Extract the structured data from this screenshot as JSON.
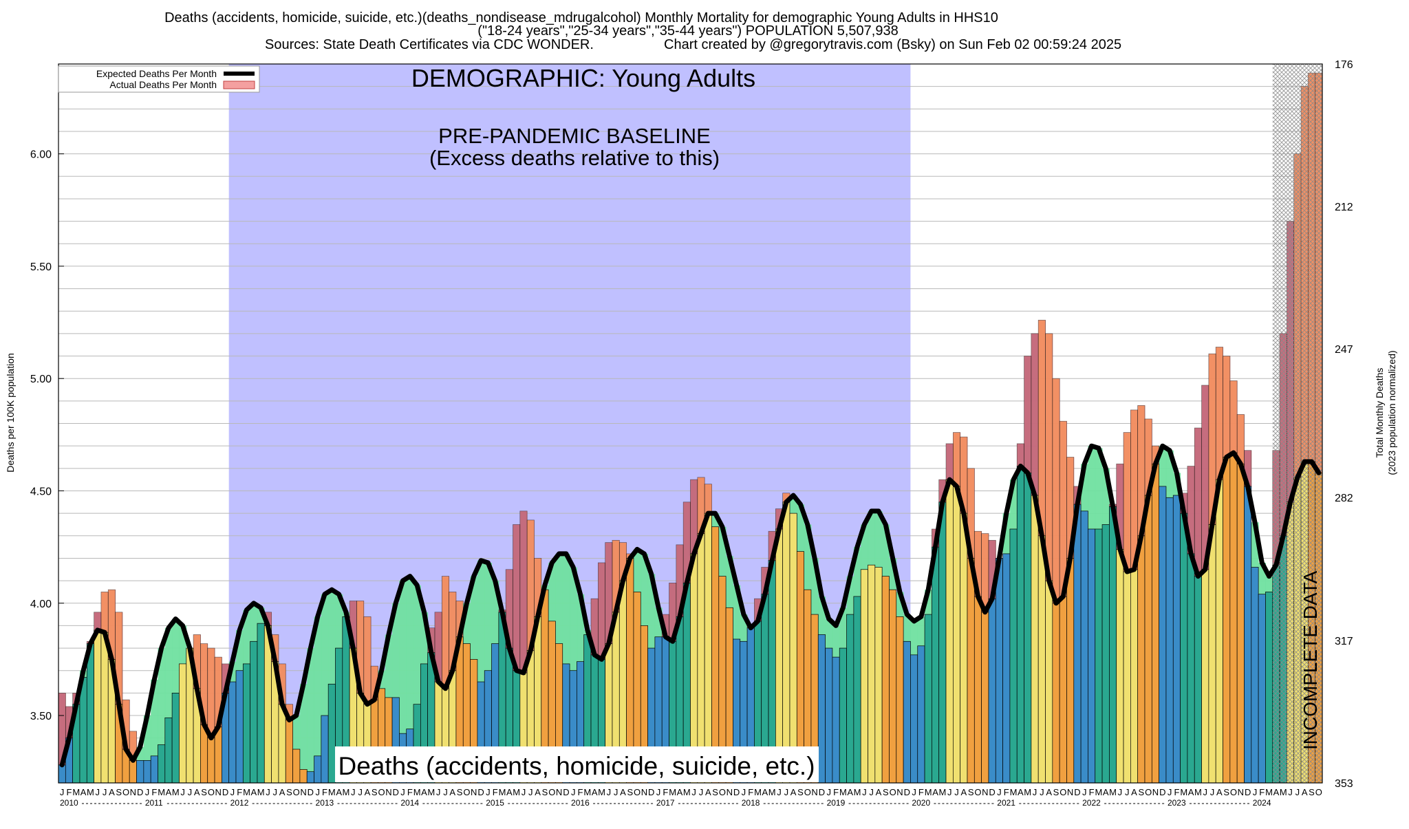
{
  "header": {
    "line1": "Deaths (accidents, homicide, suicide, etc.)(deaths_nondisease_mdrugalcohol) Monthly Mortality for demographic Young Adults in HHS10",
    "line2": "(\"18-24 years\",\"25-34 years\",\"35-44 years\") POPULATION 5,507,938",
    "line3_left": "Sources: State Death Certificates via CDC WONDER.",
    "line3_right": "Chart created by @gregorytravis.com (Bsky) on Sun Feb 02 00:59:24 2025"
  },
  "legend": {
    "expected": "Expected Deaths Per Month",
    "actual": "Actual Deaths Per Month"
  },
  "annotations": {
    "demographic": "DEMOGRAPHIC: Young Adults",
    "baseline_line1": "PRE-PANDEMIC BASELINE",
    "baseline_line2": "(Excess deaths relative to this)",
    "incomplete": "INCOMPLETE DATA",
    "category": "Deaths (accidents, homicide, suicide, etc.)"
  },
  "colors": {
    "baseline_band": "#c0c0ff",
    "expected_line": "#000000",
    "excess_fill": "#f4a0a0",
    "deficit_fill": "#70e0a0",
    "bar_winter": "#3a8cc8",
    "bar_spring": "#2aa890",
    "bar_summer": "#f0e070",
    "bar_fall": "#f0a040"
  },
  "chart_data": {
    "type": "bar",
    "ylabel_left": "Deaths per 100K population",
    "ylabel_right_line1": "Total Monthly Deaths",
    "ylabel_right_line2": "(2023 population normalized)",
    "ylim": [
      3.2,
      6.4
    ],
    "yticks_left": [
      "3.50",
      "4.00",
      "4.50",
      "5.00",
      "5.50",
      "6.00"
    ],
    "yticks_right": [
      "176",
      "212",
      "247",
      "282",
      "317",
      "353"
    ],
    "month_letters": [
      "J",
      "F",
      "M",
      "A",
      "M",
      "J",
      "J",
      "A",
      "S",
      "O",
      "N",
      "D"
    ],
    "years": [
      "2010",
      "2011",
      "2012",
      "2013",
      "2014",
      "2015",
      "2016",
      "2017",
      "2018",
      "2019",
      "2020",
      "2021",
      "2022",
      "2023",
      "2024"
    ],
    "baseline_period": [
      "2012-01",
      "2019-12"
    ],
    "incomplete_period": [
      "2024-04",
      "2024-10"
    ],
    "series": [
      {
        "name": "Actual Deaths Per Month",
        "values": [
          3.6,
          3.54,
          3.6,
          3.67,
          3.83,
          3.96,
          4.05,
          4.06,
          3.96,
          3.57,
          3.43,
          3.3,
          3.3,
          3.32,
          3.37,
          3.49,
          3.6,
          3.73,
          3.8,
          3.86,
          3.82,
          3.8,
          3.76,
          3.73,
          3.65,
          3.7,
          3.73,
          3.83,
          3.91,
          3.96,
          3.86,
          3.73,
          3.55,
          3.35,
          3.26,
          3.25,
          3.32,
          3.5,
          3.64,
          3.8,
          3.94,
          4.01,
          4.01,
          3.94,
          3.72,
          3.62,
          3.58,
          3.58,
          3.42,
          3.44,
          3.55,
          3.73,
          3.89,
          3.96,
          4.12,
          4.05,
          4.01,
          3.82,
          3.75,
          3.65,
          3.7,
          3.82,
          3.97,
          4.15,
          4.35,
          4.41,
          4.37,
          4.2,
          4.06,
          3.92,
          3.82,
          3.73,
          3.7,
          3.74,
          3.86,
          4.02,
          4.18,
          4.27,
          4.28,
          4.27,
          4.22,
          4.05,
          3.9,
          3.8,
          3.85,
          3.95,
          4.09,
          4.26,
          4.45,
          4.55,
          4.56,
          4.53,
          4.34,
          4.12,
          3.98,
          3.84,
          3.83,
          3.9,
          4.02,
          4.16,
          4.32,
          4.42,
          4.49,
          4.4,
          4.23,
          4.06,
          3.95,
          3.86,
          3.8,
          3.76,
          3.8,
          3.95,
          4.03,
          4.15,
          4.17,
          4.16,
          4.12,
          4.06,
          3.94,
          3.83,
          3.77,
          3.81,
          3.95,
          4.33,
          4.55,
          4.71,
          4.76,
          4.74,
          4.6,
          4.32,
          4.31,
          4.28,
          4.2,
          4.22,
          4.33,
          4.71,
          5.1,
          5.2,
          5.26,
          5.2,
          5.0,
          4.81,
          4.65,
          4.52,
          4.41,
          4.33,
          4.33,
          4.35,
          4.44,
          4.62,
          4.76,
          4.86,
          4.88,
          4.82,
          4.7,
          4.52,
          4.47,
          4.48,
          4.49,
          4.61,
          4.78,
          4.97,
          5.11,
          5.14,
          5.1,
          4.99,
          4.84,
          4.68,
          4.16,
          4.04,
          4.05,
          4.68,
          5.2,
          5.7,
          6.0,
          6.3,
          6.36,
          6.36
        ]
      },
      {
        "name": "Expected Deaths Per Month",
        "values": [
          3.28,
          3.4,
          3.55,
          3.7,
          3.82,
          3.88,
          3.87,
          3.75,
          3.55,
          3.35,
          3.3,
          3.36,
          3.5,
          3.66,
          3.8,
          3.89,
          3.93,
          3.9,
          3.8,
          3.62,
          3.46,
          3.4,
          3.45,
          3.6,
          3.74,
          3.88,
          3.97,
          4.0,
          3.98,
          3.9,
          3.74,
          3.55,
          3.48,
          3.5,
          3.64,
          3.8,
          3.94,
          4.04,
          4.06,
          4.04,
          3.96,
          3.8,
          3.6,
          3.55,
          3.57,
          3.7,
          3.86,
          4.0,
          4.1,
          4.12,
          4.08,
          3.96,
          3.78,
          3.65,
          3.62,
          3.7,
          3.85,
          4.0,
          4.12,
          4.19,
          4.18,
          4.1,
          3.96,
          3.8,
          3.7,
          3.69,
          3.79,
          3.94,
          4.08,
          4.18,
          4.22,
          4.22,
          4.16,
          4.04,
          3.88,
          3.77,
          3.75,
          3.82,
          3.96,
          4.1,
          4.2,
          4.24,
          4.22,
          4.13,
          3.98,
          3.85,
          3.83,
          3.94,
          4.09,
          4.22,
          4.31,
          4.4,
          4.4,
          4.34,
          4.21,
          4.08,
          3.95,
          3.89,
          3.92,
          4.04,
          4.19,
          4.33,
          4.45,
          4.48,
          4.44,
          4.35,
          4.2,
          4.03,
          3.93,
          3.9,
          3.98,
          4.12,
          4.25,
          4.35,
          4.41,
          4.41,
          4.35,
          4.2,
          4.05,
          3.95,
          3.92,
          3.94,
          4.06,
          4.25,
          4.45,
          4.55,
          4.52,
          4.4,
          4.2,
          4.03,
          3.96,
          4.02,
          4.2,
          4.4,
          4.55,
          4.61,
          4.58,
          4.48,
          4.3,
          4.1,
          4.0,
          4.03,
          4.2,
          4.44,
          4.62,
          4.7,
          4.69,
          4.6,
          4.43,
          4.24,
          4.14,
          4.15,
          4.3,
          4.48,
          4.62,
          4.7,
          4.68,
          4.58,
          4.4,
          4.22,
          4.12,
          4.15,
          4.35,
          4.55,
          4.65,
          4.67,
          4.62,
          4.52,
          4.36,
          4.18,
          4.12,
          4.17,
          4.3,
          4.45,
          4.56,
          4.63,
          4.63,
          4.58
        ]
      }
    ]
  }
}
